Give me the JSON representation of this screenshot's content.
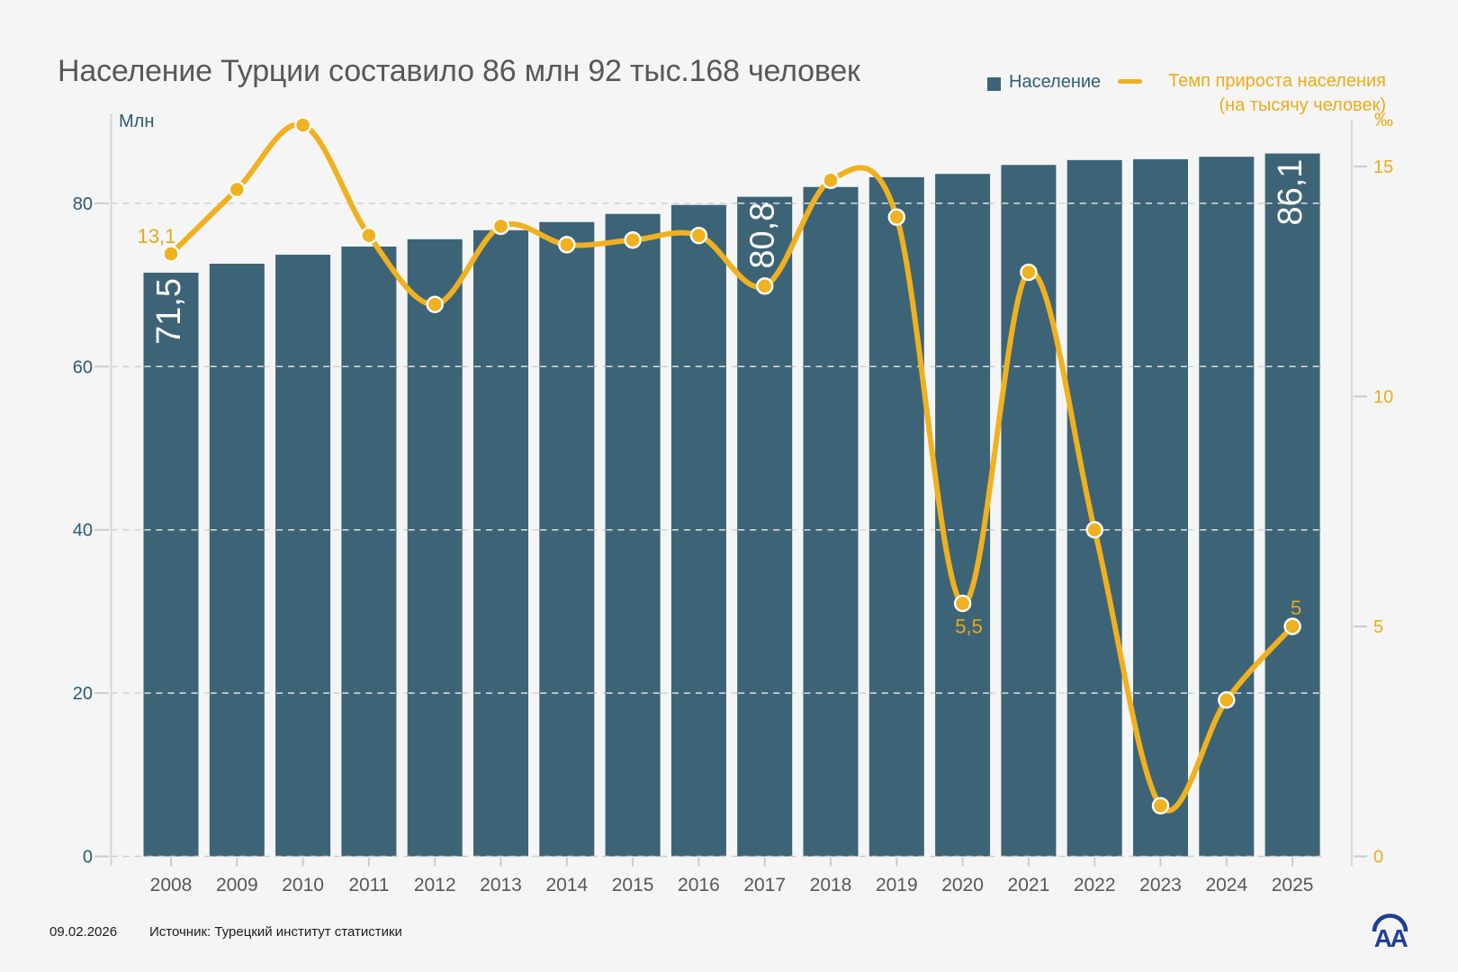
{
  "title": "Население Турции составило 86 млн 92 тыс.168 человек",
  "legend": {
    "population": "Население",
    "growth_line1": "Темп прироста населения",
    "growth_line2": "(на тысячу человек)"
  },
  "footer": {
    "date": "09.02.2026",
    "source": "Источник: Турецкий институт статистики"
  },
  "logo": {
    "name": "anadolu-agency-logo",
    "text": "AA",
    "color": "#1e3e96"
  },
  "colors": {
    "background": "#f4f5f4",
    "bar": "#3d6476",
    "line": "#f0b120",
    "point_label_yellow": "#e9a71a",
    "right_axis_yellow": "#eeab19",
    "axis_teal": "#2d5a74",
    "year_gray": "#55585b",
    "title_gray": "#57585a",
    "grid": "#d2d5d6",
    "axis_line": "#d4d7d8",
    "bar_label_white": "#ffffff"
  },
  "chart_data": {
    "type": "combo",
    "subtype": "bar+line, dual axis",
    "categories": [
      "2008",
      "2009",
      "2010",
      "2011",
      "2012",
      "2013",
      "2014",
      "2015",
      "2016",
      "2017",
      "2018",
      "2019",
      "2020",
      "2021",
      "2022",
      "2023",
      "2024",
      "2025"
    ],
    "series": [
      {
        "name": "Население",
        "kind": "bar",
        "axis": "left",
        "unit": "млн",
        "values": [
          71.5,
          72.6,
          73.7,
          74.7,
          75.6,
          76.7,
          77.7,
          78.7,
          79.8,
          80.8,
          82,
          83.2,
          83.6,
          84.7,
          85.3,
          85.4,
          85.7,
          86.1
        ]
      },
      {
        "name": "Темп прироста населения (на тысячу человек)",
        "kind": "line",
        "axis": "right",
        "unit": "‰",
        "values": [
          13.1,
          14.5,
          15.9,
          13.5,
          12,
          13.7,
          13.3,
          13.4,
          13.5,
          12.4,
          14.7,
          13.9,
          5.5,
          12.7,
          7.1,
          1.1,
          3.4,
          5
        ]
      }
    ],
    "left_axis": {
      "title": "Млн",
      "ticks": [
        0,
        20,
        40,
        60,
        80
      ],
      "range": [
        0,
        90
      ]
    },
    "right_axis": {
      "title": "‰",
      "ticks": [
        0,
        5,
        10,
        15
      ],
      "range": [
        0,
        16
      ]
    },
    "grid": "horizontal dashed lines at left-axis ticks",
    "legend_position": "top-right",
    "bar_annotations": [
      {
        "category": "2008",
        "text": "71,5"
      },
      {
        "category": "2017",
        "text": "80,8"
      },
      {
        "category": "2025",
        "text": "86,1"
      }
    ],
    "point_annotations": [
      {
        "category": "2008",
        "text": "13,1"
      },
      {
        "category": "2020",
        "text": "5,5"
      },
      {
        "category": "2025",
        "text": "5"
      }
    ]
  }
}
